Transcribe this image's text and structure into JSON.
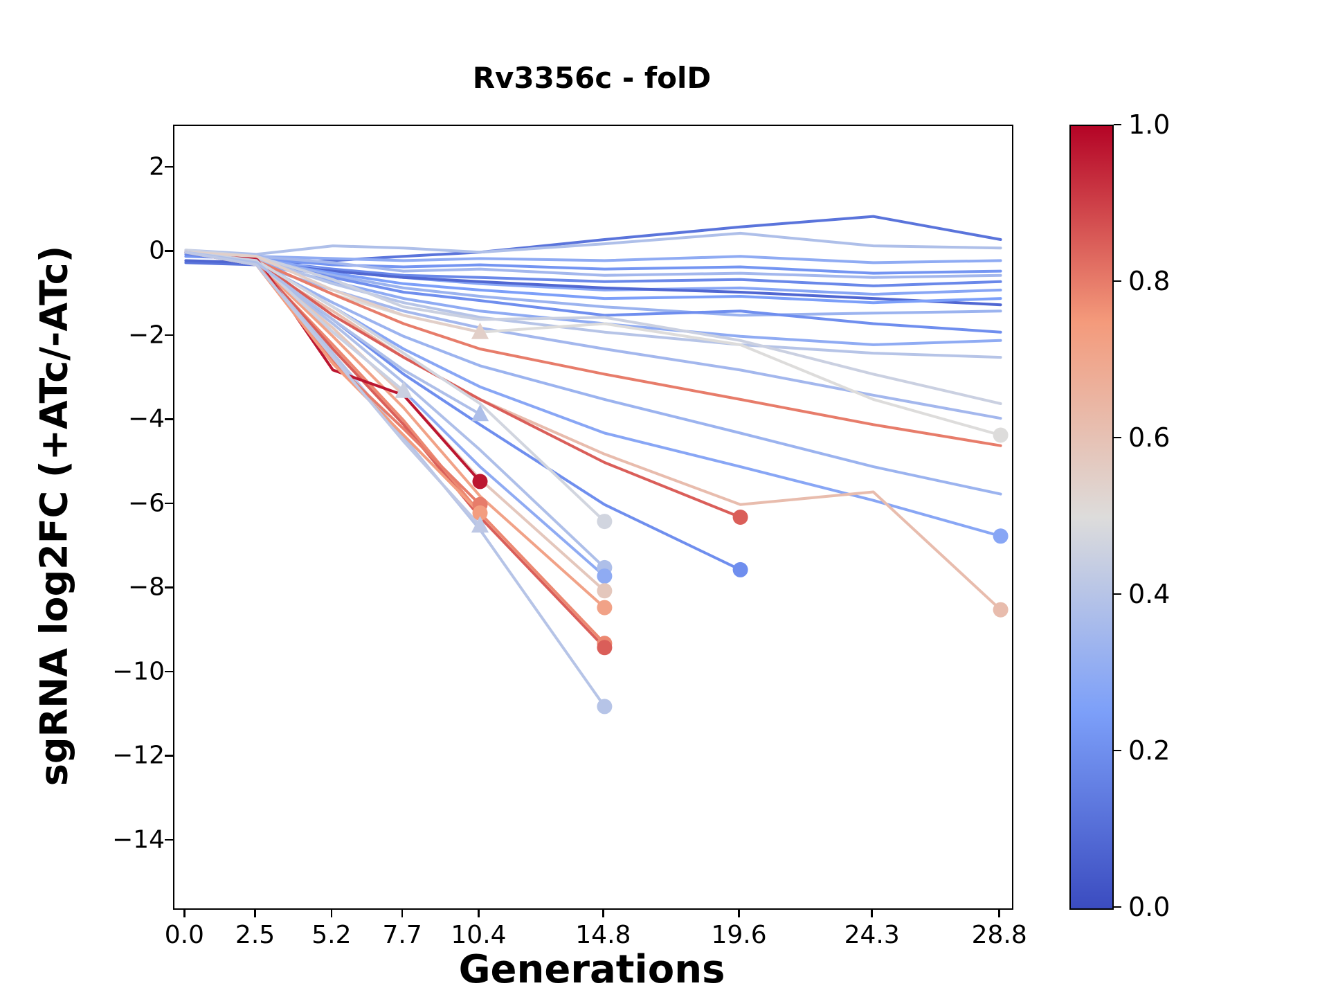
{
  "chart_data": {
    "type": "line",
    "title": "Rv3356c - folD",
    "xlabel": "Generations",
    "ylabel": "sgRNA log2FC (+ATc/-ATc)",
    "xlim": [
      -0.4,
      29.2
    ],
    "ylim": [
      -15.6,
      3.0
    ],
    "grid": false,
    "legend": "none",
    "xticks": {
      "values": [
        0.0,
        2.5,
        5.2,
        7.7,
        10.4,
        14.8,
        19.6,
        24.3,
        28.8
      ],
      "labels": [
        "0.0",
        "2.5",
        "5.2",
        "7.7",
        "10.4",
        "14.8",
        "19.6",
        "24.3",
        "28.8"
      ]
    },
    "yticks": {
      "values": [
        2,
        0,
        -2,
        -4,
        -6,
        -8,
        -10,
        -12,
        -14
      ],
      "labels": [
        "2",
        "0",
        "−2",
        "−4",
        "−6",
        "−8",
        "−10",
        "−12",
        "−14"
      ]
    },
    "colorbar": {
      "cmap": "coolwarm",
      "anchors": [
        "#3b4cc0",
        "#7c9ff9",
        "#dddcdb",
        "#f49a7b",
        "#b40426"
      ],
      "ticks": {
        "values": [
          1.0,
          0.8,
          0.6,
          0.4,
          0.2,
          0.0
        ],
        "labels": [
          "1.0",
          "0.8",
          "0.6",
          "0.4",
          "0.2",
          "0.0"
        ]
      }
    },
    "series": [
      {
        "c": 0.12,
        "marker": null,
        "x": [
          0,
          2.5,
          5.2,
          7.7,
          10.4,
          14.8,
          19.6,
          24.3,
          28.8
        ],
        "y": [
          -0.25,
          -0.3,
          -0.2,
          -0.1,
          0.0,
          0.3,
          0.6,
          0.85,
          0.3
        ]
      },
      {
        "c": 0.38,
        "marker": null,
        "x": [
          0,
          2.5,
          5.2,
          7.7,
          10.4,
          14.8,
          19.6,
          24.3,
          28.8
        ],
        "y": [
          0.05,
          -0.05,
          0.15,
          0.1,
          0.0,
          0.2,
          0.45,
          0.15,
          0.1
        ]
      },
      {
        "c": 0.3,
        "marker": null,
        "x": [
          0,
          2.5,
          5.2,
          7.7,
          10.4,
          14.8,
          19.6,
          24.3,
          28.8
        ],
        "y": [
          0.0,
          -0.1,
          -0.15,
          -0.2,
          -0.15,
          -0.2,
          -0.1,
          -0.25,
          -0.2
        ]
      },
      {
        "c": 0.22,
        "marker": null,
        "x": [
          0,
          2.5,
          5.2,
          7.7,
          10.4,
          14.8,
          19.6,
          24.3,
          28.8
        ],
        "y": [
          -0.1,
          -0.15,
          -0.3,
          -0.35,
          -0.3,
          -0.4,
          -0.35,
          -0.5,
          -0.45
        ]
      },
      {
        "c": 0.35,
        "marker": null,
        "x": [
          0,
          2.5,
          5.2,
          7.7,
          10.4,
          14.8,
          19.6,
          24.3,
          28.8
        ],
        "y": [
          0.0,
          -0.1,
          -0.25,
          -0.45,
          -0.4,
          -0.55,
          -0.5,
          -0.6,
          -0.55
        ]
      },
      {
        "c": 0.18,
        "marker": null,
        "x": [
          0,
          2.5,
          5.2,
          7.7,
          10.4,
          14.8,
          19.6,
          24.3,
          28.8
        ],
        "y": [
          -0.05,
          -0.2,
          -0.4,
          -0.55,
          -0.6,
          -0.7,
          -0.65,
          -0.8,
          -0.7
        ]
      },
      {
        "c": 0.28,
        "marker": null,
        "x": [
          0,
          2.5,
          5.2,
          7.7,
          10.4,
          14.8,
          19.6,
          24.3,
          28.8
        ],
        "y": [
          0.0,
          -0.15,
          -0.45,
          -0.6,
          -0.75,
          -0.9,
          -0.85,
          -1.0,
          -0.9
        ]
      },
      {
        "c": 0.08,
        "marker": null,
        "x": [
          0,
          2.5,
          5.2,
          7.7,
          10.4,
          14.8,
          19.6,
          24.3,
          28.8
        ],
        "y": [
          -0.2,
          -0.25,
          -0.45,
          -0.6,
          -0.7,
          -0.85,
          -0.95,
          -1.1,
          -1.25
        ]
      },
      {
        "c": 0.25,
        "marker": null,
        "x": [
          0,
          2.5,
          5.2,
          7.7,
          10.4,
          14.8,
          19.6,
          24.3,
          28.8
        ],
        "y": [
          0.0,
          -0.2,
          -0.5,
          -0.75,
          -0.9,
          -1.1,
          -1.05,
          -1.2,
          -1.1
        ]
      },
      {
        "c": 0.33,
        "marker": null,
        "x": [
          0,
          2.5,
          5.2,
          7.7,
          10.4,
          14.8,
          19.6,
          24.3,
          28.8
        ],
        "y": [
          0.0,
          -0.15,
          -0.55,
          -0.85,
          -1.05,
          -1.3,
          -1.5,
          -1.45,
          -1.4
        ]
      },
      {
        "c": 0.2,
        "marker": null,
        "x": [
          0,
          2.5,
          5.2,
          7.7,
          10.4,
          14.8,
          19.6,
          24.3,
          28.8
        ],
        "y": [
          0.0,
          -0.2,
          -0.6,
          -0.95,
          -1.15,
          -1.5,
          -1.4,
          -1.7,
          -1.9
        ]
      },
      {
        "c": 0.3,
        "marker": null,
        "x": [
          0,
          2.5,
          5.2,
          7.7,
          10.4,
          14.8,
          19.6,
          24.3,
          28.8
        ],
        "y": [
          0.0,
          -0.25,
          -0.7,
          -1.1,
          -1.4,
          -1.7,
          -2.0,
          -2.2,
          -2.1
        ]
      },
      {
        "c": 0.4,
        "marker": null,
        "x": [
          0,
          2.5,
          5.2,
          7.7,
          10.4,
          14.8,
          19.6,
          24.3,
          28.8
        ],
        "y": [
          0.0,
          -0.15,
          -0.75,
          -1.2,
          -1.55,
          -1.9,
          -2.2,
          -2.4,
          -2.5
        ]
      },
      {
        "c": 0.45,
        "marker": null,
        "x": [
          0,
          2.5,
          5.2,
          7.7,
          10.4,
          14.8,
          19.6,
          24.3,
          28.8
        ],
        "y": [
          0.05,
          -0.1,
          -0.65,
          -1.3,
          -1.6,
          -1.55,
          -2.1,
          -2.9,
          -3.6
        ]
      },
      {
        "c": 0.35,
        "marker": null,
        "x": [
          0,
          2.5,
          5.2,
          7.7,
          10.4,
          14.8,
          19.6,
          24.3,
          28.8
        ],
        "y": [
          0.0,
          -0.3,
          -0.9,
          -1.4,
          -1.8,
          -2.3,
          -2.8,
          -3.4,
          -3.95
        ]
      },
      {
        "c": 0.5,
        "marker": "circle",
        "x": [
          0,
          2.5,
          5.2,
          7.7,
          10.4,
          14.8,
          19.6,
          24.3,
          28.8
        ],
        "y": [
          0.0,
          -0.2,
          -1.0,
          -1.5,
          -1.9,
          -1.7,
          -2.2,
          -3.5,
          -4.35
        ]
      },
      {
        "c": 0.8,
        "marker": null,
        "x": [
          0,
          2.5,
          5.2,
          7.7,
          10.4,
          14.8,
          19.6,
          24.3,
          28.8
        ],
        "y": [
          0.0,
          -0.2,
          -1.0,
          -1.7,
          -2.3,
          -2.9,
          -3.5,
          -4.1,
          -4.6
        ]
      },
      {
        "c": 0.33,
        "marker": null,
        "x": [
          0,
          2.5,
          5.2,
          7.7,
          10.4,
          14.8,
          19.6,
          24.3,
          28.8
        ],
        "y": [
          0.0,
          -0.25,
          -1.2,
          -2.0,
          -2.7,
          -3.5,
          -4.3,
          -5.1,
          -5.75
        ]
      },
      {
        "c": 0.28,
        "marker": "circle",
        "x": [
          0,
          2.5,
          5.2,
          7.7,
          10.4,
          14.8,
          19.6,
          24.3,
          28.8
        ],
        "y": [
          0.0,
          -0.2,
          -1.3,
          -2.3,
          -3.2,
          -4.3,
          -5.1,
          -5.9,
          -6.75
        ]
      },
      {
        "c": 0.62,
        "marker": "circle",
        "x": [
          0,
          2.5,
          5.2,
          7.7,
          10.4,
          14.8,
          19.6,
          24.3,
          28.8
        ],
        "y": [
          0.0,
          -0.3,
          -1.4,
          -2.5,
          -3.5,
          -4.8,
          -6.0,
          -5.7,
          -8.5
        ]
      },
      {
        "c": 0.85,
        "marker": "circle",
        "x": [
          0,
          2.5,
          5.2,
          7.7,
          10.4,
          14.8,
          19.6
        ],
        "y": [
          0.0,
          -0.2,
          -1.5,
          -2.5,
          -3.5,
          -5.0,
          -6.3
        ]
      },
      {
        "c": 0.2,
        "marker": "circle",
        "x": [
          0,
          2.5,
          5.2,
          7.7,
          10.4,
          14.8,
          19.6
        ],
        "y": [
          0.0,
          -0.3,
          -1.6,
          -2.9,
          -4.1,
          -6.0,
          -7.55
        ]
      },
      {
        "c": 0.47,
        "marker": "circle",
        "x": [
          0,
          2.5,
          5.2,
          7.7,
          10.4,
          14.8
        ],
        "y": [
          0.0,
          -0.2,
          -1.3,
          -2.4,
          -3.6,
          -6.4
        ]
      },
      {
        "c": 0.38,
        "marker": "circle",
        "x": [
          0,
          2.5,
          5.2,
          7.7,
          10.4,
          14.8
        ],
        "y": [
          0.0,
          -0.3,
          -1.7,
          -3.1,
          -4.7,
          -7.5
        ]
      },
      {
        "c": 0.3,
        "marker": "circle",
        "x": [
          0,
          2.5,
          5.2,
          7.7,
          10.4,
          14.8
        ],
        "y": [
          0.0,
          -0.25,
          -1.9,
          -3.3,
          -5.1,
          -7.7
        ]
      },
      {
        "c": 0.58,
        "marker": "circle",
        "x": [
          0,
          2.5,
          5.2,
          7.7,
          10.4,
          14.8
        ],
        "y": [
          0.0,
          -0.3,
          -1.8,
          -3.4,
          -5.4,
          -8.05
        ]
      },
      {
        "c": 0.72,
        "marker": "circle",
        "x": [
          0,
          2.5,
          5.2,
          7.7,
          10.4,
          14.8
        ],
        "y": [
          0.0,
          -0.25,
          -2.0,
          -3.7,
          -5.8,
          -8.45
        ]
      },
      {
        "c": 0.78,
        "marker": "circle",
        "x": [
          0,
          2.5,
          5.2,
          7.7,
          10.4,
          14.8
        ],
        "y": [
          0.0,
          -0.3,
          -2.2,
          -4.0,
          -6.2,
          -9.3
        ]
      },
      {
        "c": 0.85,
        "marker": "circle",
        "x": [
          0,
          2.5,
          5.2,
          7.7,
          10.4,
          14.8
        ],
        "y": [
          0.0,
          -0.25,
          -2.3,
          -4.1,
          -6.3,
          -9.4
        ]
      },
      {
        "c": 0.4,
        "marker": "circle",
        "x": [
          0,
          2.5,
          5.2,
          7.7,
          10.4,
          14.8
        ],
        "y": [
          0.0,
          -0.3,
          -2.4,
          -4.4,
          -6.6,
          -10.8
        ]
      },
      {
        "c": 0.97,
        "marker": "circle",
        "x": [
          0,
          2.5,
          5.2,
          7.7,
          10.4
        ],
        "y": [
          0.0,
          -0.15,
          -2.8,
          -3.4,
          -5.45
        ]
      },
      {
        "c": 0.8,
        "marker": "circle",
        "x": [
          0,
          2.5,
          5.2,
          7.7,
          10.4
        ],
        "y": [
          0.0,
          -0.25,
          -2.6,
          -4.2,
          -6.0
        ]
      },
      {
        "c": 0.74,
        "marker": "circle",
        "x": [
          0,
          2.5,
          5.2,
          7.7,
          10.4
        ],
        "y": [
          0.0,
          -0.3,
          -2.65,
          -4.35,
          -6.2
        ]
      },
      {
        "c": 0.55,
        "marker": "triangle",
        "x": [
          0,
          2.5,
          5.2,
          7.7,
          10.4
        ],
        "y": [
          0.0,
          -0.1,
          -0.9,
          -1.5,
          -1.9
        ]
      },
      {
        "c": 0.45,
        "marker": "triangle",
        "x": [
          0,
          2.5,
          5.2,
          7.7
        ],
        "y": [
          0.0,
          -0.2,
          -1.9,
          -3.3
        ]
      },
      {
        "c": 0.38,
        "marker": "triangle",
        "x": [
          0,
          2.5,
          5.2,
          7.7,
          10.4
        ],
        "y": [
          0.0,
          -0.25,
          -1.6,
          -2.8,
          -3.85
        ]
      },
      {
        "c": 0.42,
        "marker": "triangle",
        "x": [
          0,
          2.5,
          5.2,
          7.7,
          10.4
        ],
        "y": [
          0.0,
          -0.3,
          -2.5,
          -4.5,
          -6.5
        ]
      }
    ]
  }
}
